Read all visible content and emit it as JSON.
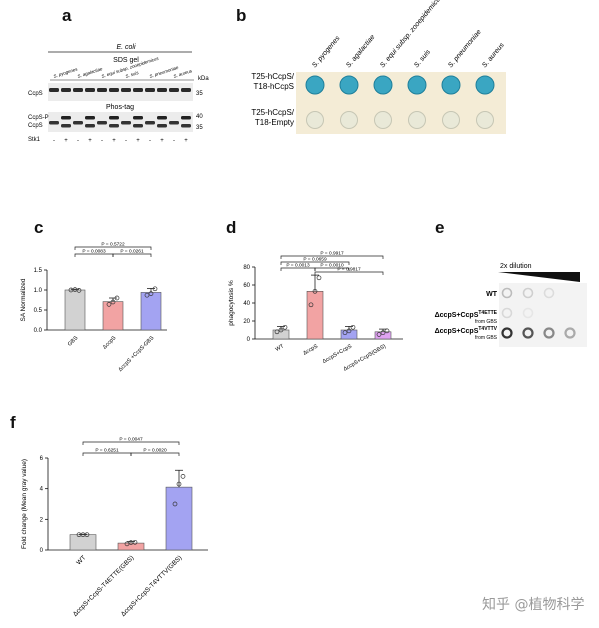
{
  "panels": {
    "a": "a",
    "b": "b",
    "c": "c",
    "d": "d",
    "e": "e",
    "f": "f"
  },
  "panel_a": {
    "ecoli": "E. coli",
    "sds": "SDS gel",
    "phos": "Phos-tag",
    "species": [
      "S. pyogenes",
      "S. agalactiae",
      "S. equi subsp. zooepidemicus",
      "S. suis",
      "S. pneumoniae",
      "S. aureus"
    ],
    "kda": "kDa",
    "row1_label": "CcpS",
    "row2_label_a": "CcpS-P",
    "row2_label_b": "CcpS",
    "mw_top": "35",
    "mw_mid": "40",
    "mw_bot": "35",
    "stk1": "Stk1",
    "signs": [
      "-",
      "+",
      "-",
      "+",
      "-",
      "+",
      "-",
      "+",
      "-",
      "+",
      "-",
      "+"
    ]
  },
  "panel_b": {
    "species": [
      "S. pyogenes",
      "S. agalactiae",
      "S. equi subsp. zooepidemicus",
      "S. suis",
      "S. pneumoniae",
      "S. aureus"
    ],
    "row1": [
      "T25-hCcpS/",
      "T18-hCcpS"
    ],
    "row2": [
      "T25-hCcpS/",
      "T18-Empty"
    ]
  },
  "panel_e": {
    "title": "2x  dilution",
    "rows": [
      "WT",
      "ΔccpS+CcpS",
      "ΔccpS+CcpS"
    ],
    "sups": [
      "",
      "T4ETTE",
      "T4VTTV"
    ],
    "from": "from GBS"
  },
  "watermark": "知乎 @植物科学",
  "chart_data": [
    {
      "type": "bar",
      "panel": "c",
      "categories": [
        "GBS",
        "ΔccpS",
        "ΔccpS +CcpS-GBS"
      ],
      "values": [
        1.0,
        0.71,
        0.94
      ],
      "errors": [
        0.02,
        0.09,
        0.1
      ],
      "points": [
        [
          1.0,
          1.01,
          0.99
        ],
        [
          0.64,
          0.7,
          0.8
        ],
        [
          0.87,
          0.91,
          1.03
        ]
      ],
      "colors": [
        "#d2d2d2",
        "#f2a3a3",
        "#a3a3f2"
      ],
      "ylabel": "SA Normalized",
      "yticks": [
        "0.0",
        "0.5",
        "1.0",
        "1.5"
      ],
      "ylim": [
        0,
        1.5
      ],
      "pvalues": [
        "P = 0.5722",
        "P = 0.0083",
        "P = 0.0261"
      ]
    },
    {
      "type": "bar",
      "panel": "d",
      "categories": [
        "WT",
        "ΔccpS",
        "ΔccpS+CcpS",
        "ΔccpS+CcpS(GBS)"
      ],
      "values": [
        10,
        53,
        10,
        8
      ],
      "errors": [
        4,
        18,
        4,
        3
      ],
      "points": [
        [
          8,
          10,
          13
        ],
        [
          38,
          53,
          68
        ],
        [
          7,
          9,
          13
        ],
        [
          5,
          7,
          9
        ]
      ],
      "colors": [
        "#d2d2d2",
        "#f2a3a3",
        "#a3a3f2",
        "#e0a3f2"
      ],
      "ylabel": "phagocytosis %",
      "yticks": [
        "0",
        "20",
        "40",
        "60",
        "80"
      ],
      "ylim": [
        0,
        80
      ],
      "pvalues": [
        "P = 0.9917",
        "P = 0.0659",
        "P = 0.0013",
        "P = 0.0010",
        "P = 0.9817"
      ]
    },
    {
      "type": "bar",
      "panel": "f",
      "categories": [
        "WT",
        "ΔccpS+CcpS-T4ETTE(GBS)",
        "ΔccpS+CcpS-T4VTTV(GBS)"
      ],
      "values": [
        1.0,
        0.45,
        4.1
      ],
      "errors": [
        0.03,
        0.1,
        1.1
      ],
      "points": [
        [
          1.0,
          1.0,
          1.0
        ],
        [
          0.4,
          0.48,
          0.5
        ],
        [
          3.0,
          4.3,
          4.8
        ]
      ],
      "colors": [
        "#d2d2d2",
        "#f2a3a3",
        "#a3a3f2"
      ],
      "ylabel": "Fold change (Mean gray value)",
      "yticks": [
        "0",
        "2",
        "4",
        "6"
      ],
      "ylim": [
        0,
        6
      ],
      "pvalues": [
        "P = 0.0047",
        "P = 0.6251",
        "P = 0.0020"
      ]
    }
  ]
}
